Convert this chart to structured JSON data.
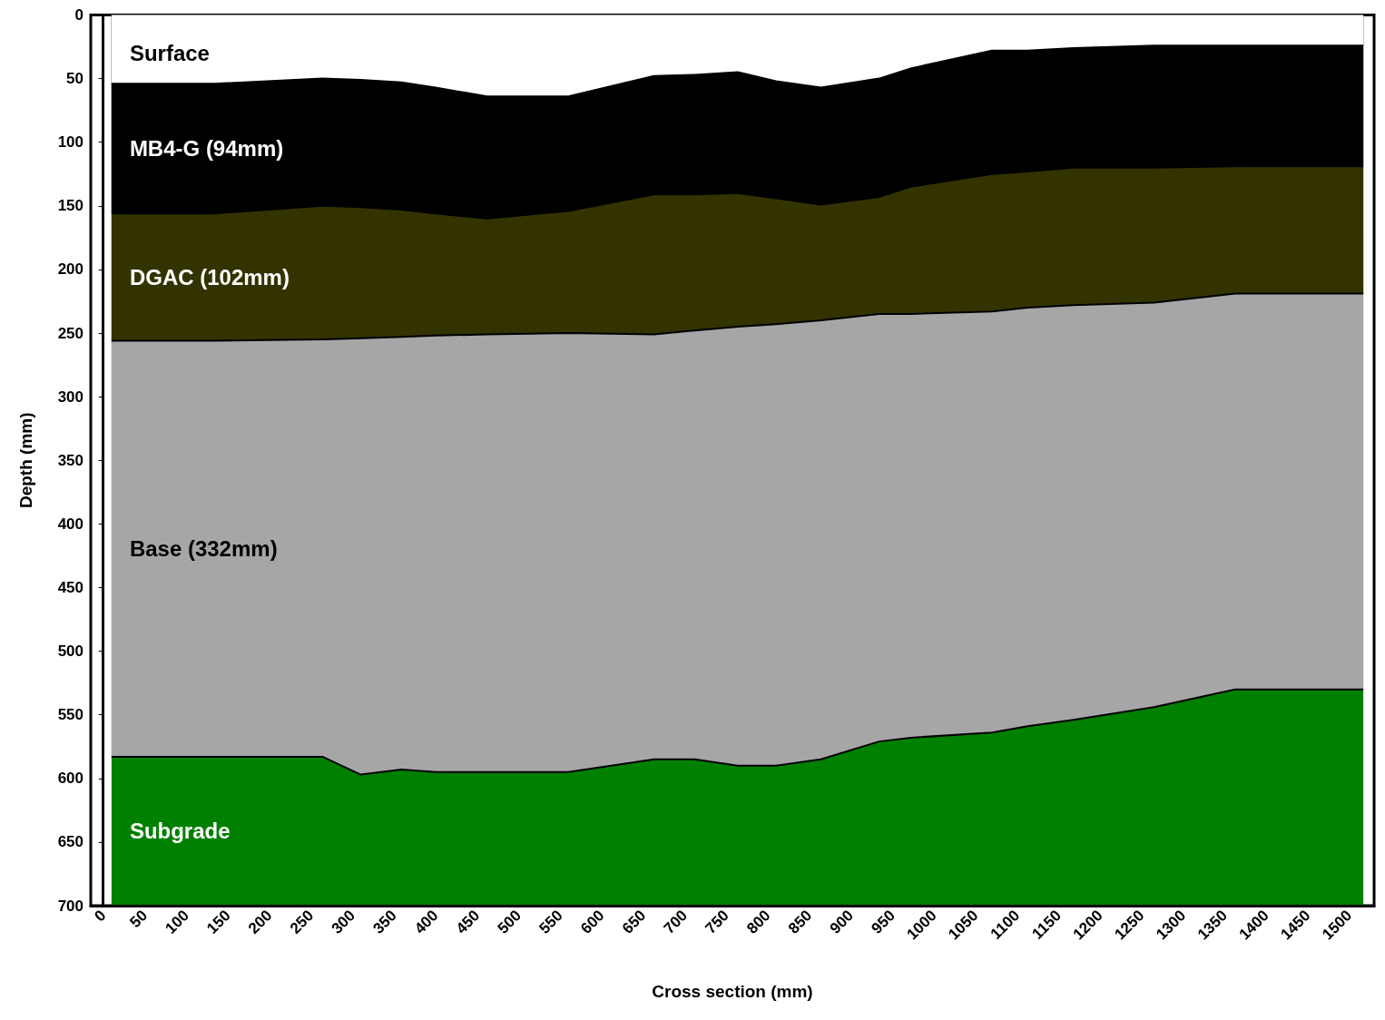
{
  "chart_data": {
    "type": "area",
    "stacked": true,
    "xlabel": "Cross section (mm)",
    "ylabel": "Depth (mm)",
    "x": [
      10,
      61,
      134,
      264,
      310,
      359,
      400,
      462,
      560,
      663,
      712,
      764,
      810,
      864,
      934,
      972,
      1070,
      1113,
      1168,
      1265,
      1363,
      1517
    ],
    "series": [
      {
        "name": "Surface",
        "color": "#ffffff",
        "values": [
          54,
          54,
          54,
          50,
          51,
          53,
          57,
          64,
          64,
          48,
          47,
          45,
          52,
          57,
          50,
          42,
          28,
          28,
          26,
          24,
          24,
          24
        ]
      },
      {
        "name": "MB4-G (94mm)",
        "color": "#000000",
        "values": [
          102,
          102,
          102,
          100,
          100,
          100,
          99,
          96,
          90,
          93,
          94,
          95,
          92,
          92,
          93,
          93,
          97,
          95,
          94,
          96,
          95,
          95
        ]
      },
      {
        "name": "DGAC (102mm)",
        "color": "#333300",
        "values": [
          100,
          100,
          100,
          105,
          103,
          100,
          96,
          91,
          96,
          110,
          107,
          105,
          99,
          91,
          92,
          100,
          108,
          107,
          108,
          106,
          100,
          100
        ]
      },
      {
        "name": "Base (332mm)",
        "color": "#a6a6a6",
        "values": [
          327,
          327,
          327,
          328,
          343,
          340,
          343,
          344,
          345,
          334,
          337,
          345,
          347,
          345,
          336,
          333,
          331,
          329,
          326,
          318,
          311,
          311
        ]
      },
      {
        "name": "Subgrade",
        "color": "#008000",
        "values": [
          117,
          117,
          117,
          117,
          103,
          107,
          105,
          105,
          105,
          115,
          115,
          110,
          110,
          115,
          129,
          132,
          136,
          141,
          146,
          156,
          170,
          170
        ]
      }
    ],
    "xlim": [
      -15,
      1530
    ],
    "xticks": [
      0,
      50,
      100,
      150,
      200,
      250,
      300,
      350,
      400,
      450,
      500,
      550,
      600,
      650,
      700,
      750,
      800,
      850,
      900,
      950,
      1000,
      1050,
      1100,
      1150,
      1200,
      1250,
      1300,
      1350,
      1400,
      1450,
      1500
    ],
    "ylim": [
      700,
      0
    ],
    "yticks": [
      0,
      50,
      100,
      150,
      200,
      250,
      300,
      350,
      400,
      450,
      500,
      550,
      600,
      650,
      700
    ],
    "grid": false,
    "legend": false
  }
}
